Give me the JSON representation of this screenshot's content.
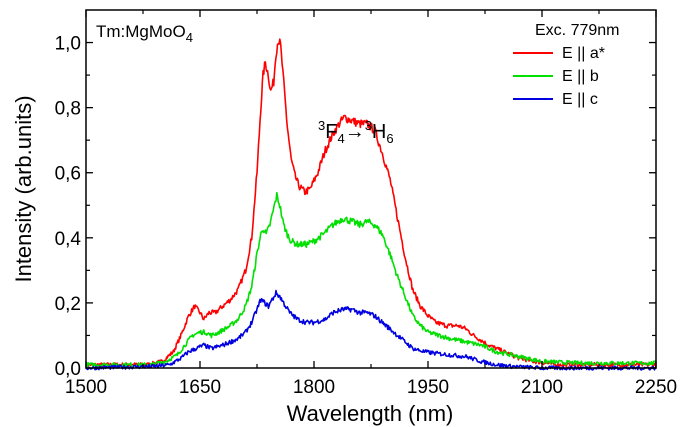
{
  "chart_data": {
    "type": "line",
    "sample_label": {
      "main": "Tm:MgMoO",
      "sub": "4"
    },
    "transition_label": {
      "sup1": "3",
      "a": "F",
      "sub1": "4",
      "arrow": "→",
      "sup2": "3",
      "b": "H",
      "sub2": "6"
    },
    "xlabel": "Wavelength (nm)",
    "ylabel": "Intensity (arb.units)",
    "xlim": [
      1500,
      2250
    ],
    "ylim": [
      0,
      1.1
    ],
    "xticks": [
      1500,
      1650,
      1800,
      1950,
      2100,
      2250
    ],
    "xtick_labels": [
      "1500",
      "1650",
      "1800",
      "1950",
      "2100",
      "2250"
    ],
    "yticks": [
      0,
      0.2,
      0.4,
      0.6,
      0.8,
      1.0
    ],
    "ytick_labels": [
      "0,0",
      "0,2",
      "0,4",
      "0,6",
      "0,8",
      "1,0"
    ],
    "grid": false,
    "legend": {
      "title": "Exc. 779nm",
      "position": "top-right"
    },
    "series": [
      {
        "name": "E || a*",
        "color": "#ff0000",
        "points": [
          [
            1500,
            0.01
          ],
          [
            1580,
            0.01
          ],
          [
            1600,
            0.02
          ],
          [
            1615,
            0.05
          ],
          [
            1625,
            0.1
          ],
          [
            1635,
            0.16
          ],
          [
            1643,
            0.19
          ],
          [
            1650,
            0.17
          ],
          [
            1655,
            0.15
          ],
          [
            1662,
            0.17
          ],
          [
            1670,
            0.17
          ],
          [
            1680,
            0.19
          ],
          [
            1690,
            0.21
          ],
          [
            1700,
            0.24
          ],
          [
            1710,
            0.3
          ],
          [
            1718,
            0.4
          ],
          [
            1725,
            0.6
          ],
          [
            1730,
            0.8
          ],
          [
            1733,
            0.9
          ],
          [
            1736,
            0.94
          ],
          [
            1740,
            0.9
          ],
          [
            1743,
            0.85
          ],
          [
            1747,
            0.88
          ],
          [
            1750,
            0.97
          ],
          [
            1753,
            1.01
          ],
          [
            1756,
            0.99
          ],
          [
            1760,
            0.88
          ],
          [
            1765,
            0.74
          ],
          [
            1770,
            0.64
          ],
          [
            1775,
            0.59
          ],
          [
            1780,
            0.56
          ],
          [
            1788,
            0.54
          ],
          [
            1795,
            0.55
          ],
          [
            1805,
            0.6
          ],
          [
            1815,
            0.67
          ],
          [
            1825,
            0.72
          ],
          [
            1833,
            0.75
          ],
          [
            1840,
            0.77
          ],
          [
            1850,
            0.76
          ],
          [
            1860,
            0.75
          ],
          [
            1870,
            0.75
          ],
          [
            1880,
            0.73
          ],
          [
            1890,
            0.66
          ],
          [
            1900,
            0.58
          ],
          [
            1910,
            0.46
          ],
          [
            1920,
            0.34
          ],
          [
            1930,
            0.24
          ],
          [
            1940,
            0.19
          ],
          [
            1950,
            0.16
          ],
          [
            1960,
            0.14
          ],
          [
            1975,
            0.13
          ],
          [
            1990,
            0.13
          ],
          [
            2000,
            0.12
          ],
          [
            2010,
            0.1
          ],
          [
            2030,
            0.07
          ],
          [
            2050,
            0.05
          ],
          [
            2070,
            0.03
          ],
          [
            2090,
            0.02
          ],
          [
            2120,
            0.01
          ],
          [
            2150,
            0.01
          ],
          [
            2200,
            0.01
          ],
          [
            2250,
            0.01
          ]
        ]
      },
      {
        "name": "E || b",
        "color": "#00e000",
        "points": [
          [
            1500,
            0.01
          ],
          [
            1585,
            0.01
          ],
          [
            1605,
            0.02
          ],
          [
            1620,
            0.04
          ],
          [
            1630,
            0.07
          ],
          [
            1640,
            0.1
          ],
          [
            1650,
            0.11
          ],
          [
            1657,
            0.11
          ],
          [
            1665,
            0.1
          ],
          [
            1675,
            0.11
          ],
          [
            1690,
            0.13
          ],
          [
            1700,
            0.15
          ],
          [
            1710,
            0.19
          ],
          [
            1718,
            0.25
          ],
          [
            1725,
            0.35
          ],
          [
            1730,
            0.41
          ],
          [
            1733,
            0.43
          ],
          [
            1737,
            0.41
          ],
          [
            1742,
            0.44
          ],
          [
            1747,
            0.49
          ],
          [
            1751,
            0.53
          ],
          [
            1755,
            0.5
          ],
          [
            1760,
            0.44
          ],
          [
            1765,
            0.41
          ],
          [
            1770,
            0.39
          ],
          [
            1778,
            0.38
          ],
          [
            1790,
            0.38
          ],
          [
            1800,
            0.39
          ],
          [
            1812,
            0.41
          ],
          [
            1825,
            0.44
          ],
          [
            1838,
            0.46
          ],
          [
            1850,
            0.45
          ],
          [
            1860,
            0.44
          ],
          [
            1870,
            0.45
          ],
          [
            1880,
            0.44
          ],
          [
            1890,
            0.41
          ],
          [
            1900,
            0.35
          ],
          [
            1910,
            0.28
          ],
          [
            1920,
            0.22
          ],
          [
            1930,
            0.16
          ],
          [
            1940,
            0.13
          ],
          [
            1950,
            0.11
          ],
          [
            1965,
            0.1
          ],
          [
            1980,
            0.09
          ],
          [
            2000,
            0.08
          ],
          [
            2020,
            0.07
          ],
          [
            2040,
            0.05
          ],
          [
            2060,
            0.04
          ],
          [
            2080,
            0.03
          ],
          [
            2100,
            0.02
          ],
          [
            2150,
            0.015
          ],
          [
            2200,
            0.015
          ],
          [
            2250,
            0.015
          ]
        ]
      },
      {
        "name": "E || c",
        "color": "#0000e0",
        "points": [
          [
            1500,
            0.0
          ],
          [
            1590,
            0.005
          ],
          [
            1610,
            0.01
          ],
          [
            1625,
            0.03
          ],
          [
            1635,
            0.05
          ],
          [
            1645,
            0.06
          ],
          [
            1655,
            0.07
          ],
          [
            1665,
            0.06
          ],
          [
            1680,
            0.07
          ],
          [
            1690,
            0.08
          ],
          [
            1700,
            0.09
          ],
          [
            1710,
            0.11
          ],
          [
            1718,
            0.14
          ],
          [
            1725,
            0.18
          ],
          [
            1730,
            0.21
          ],
          [
            1735,
            0.2
          ],
          [
            1740,
            0.19
          ],
          [
            1745,
            0.21
          ],
          [
            1750,
            0.23
          ],
          [
            1755,
            0.22
          ],
          [
            1760,
            0.2
          ],
          [
            1768,
            0.17
          ],
          [
            1778,
            0.15
          ],
          [
            1790,
            0.14
          ],
          [
            1800,
            0.14
          ],
          [
            1815,
            0.15
          ],
          [
            1825,
            0.17
          ],
          [
            1838,
            0.18
          ],
          [
            1850,
            0.18
          ],
          [
            1860,
            0.17
          ],
          [
            1870,
            0.17
          ],
          [
            1880,
            0.16
          ],
          [
            1890,
            0.14
          ],
          [
            1900,
            0.12
          ],
          [
            1910,
            0.1
          ],
          [
            1920,
            0.08
          ],
          [
            1930,
            0.06
          ],
          [
            1945,
            0.05
          ],
          [
            1960,
            0.045
          ],
          [
            1980,
            0.04
          ],
          [
            2000,
            0.035
          ],
          [
            2020,
            0.02
          ],
          [
            2040,
            0.01
          ],
          [
            2060,
            0.005
          ],
          [
            2100,
            0.0
          ],
          [
            2150,
            0.0
          ],
          [
            2250,
            0.0
          ]
        ]
      }
    ]
  }
}
